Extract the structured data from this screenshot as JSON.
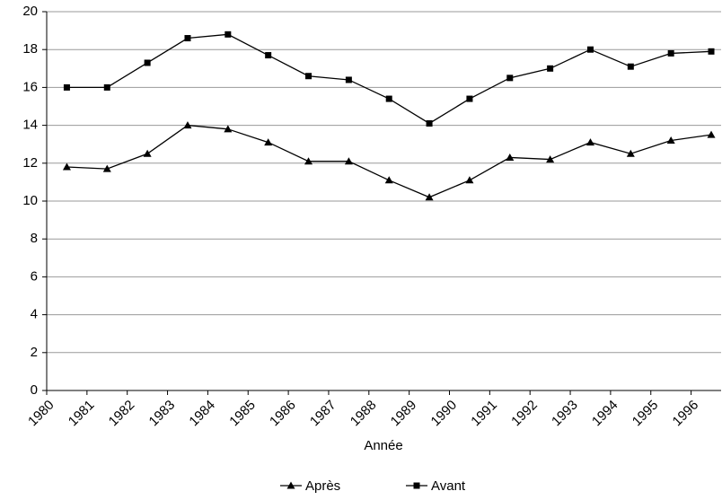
{
  "chart_data": {
    "type": "line",
    "x_label": "Année",
    "categories": [
      "1980",
      "1981",
      "1982",
      "1983",
      "1984",
      "1985",
      "1986",
      "1987",
      "1988",
      "1989",
      "1990",
      "1991",
      "1992",
      "1993",
      "1994",
      "1995",
      "1996"
    ],
    "series": [
      {
        "name": "Après",
        "color": "#000000",
        "marker": "triangle",
        "values": [
          11.8,
          11.7,
          12.5,
          14,
          13.8,
          13.1,
          12.1,
          12.1,
          11.1,
          10.2,
          11.1,
          12.3,
          12.2,
          13.1,
          12.5,
          13.2,
          13.5
        ]
      },
      {
        "name": "Avant",
        "color": "#000000",
        "marker": "square",
        "values": [
          16,
          16,
          17.3,
          18.6,
          18.8,
          17.7,
          16.6,
          16.4,
          15.4,
          14.1,
          15.4,
          16.5,
          17,
          18,
          17.1,
          17.8,
          17.9
        ]
      }
    ],
    "ylim": [
      0,
      20
    ],
    "yticks": [
      0,
      2,
      4,
      6,
      8,
      10,
      12,
      14,
      16,
      18,
      20
    ],
    "grid": true,
    "legend": "bottom"
  }
}
